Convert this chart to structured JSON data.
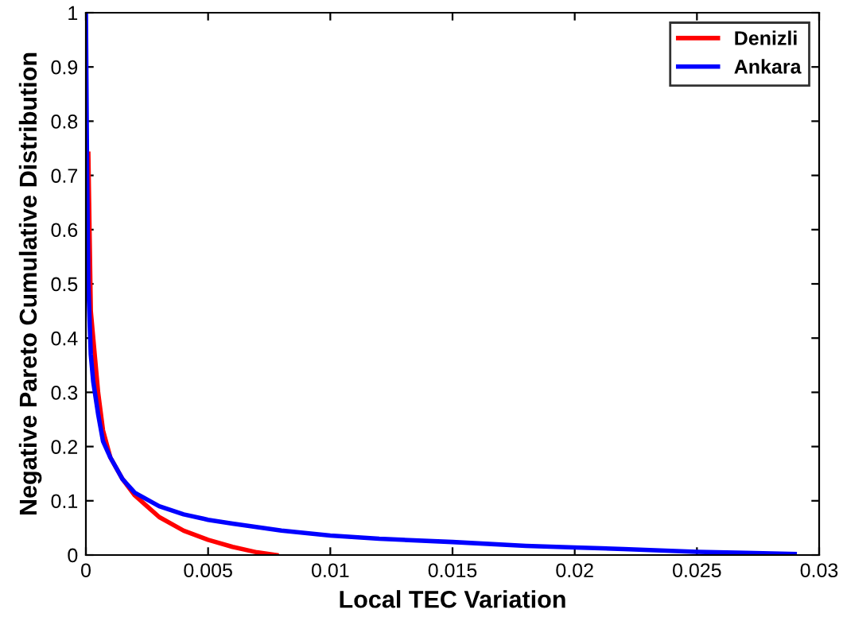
{
  "chart_data": {
    "type": "line",
    "xlabel": "Local TEC Variation",
    "ylabel": "Negative Pareto Cumulative Distribution",
    "xlim": [
      0,
      0.03
    ],
    "ylim": [
      0,
      1
    ],
    "xticks": [
      0,
      0.005,
      0.01,
      0.015,
      0.02,
      0.025,
      0.03
    ],
    "yticks": [
      0,
      0.1,
      0.2,
      0.3,
      0.4,
      0.5,
      0.6,
      0.7,
      0.8,
      0.9,
      1
    ],
    "legend": "top right",
    "grid": false,
    "marker": "none",
    "line_style": "solid",
    "series": [
      {
        "name": "Denizli",
        "color": "#ff0000",
        "x": [
          0.0001,
          0.0002,
          0.0003,
          0.0005,
          0.0007,
          0.001,
          0.0015,
          0.002,
          0.0025,
          0.003,
          0.004,
          0.005,
          0.006,
          0.007,
          0.0078
        ],
        "values": [
          0.74,
          0.45,
          0.4,
          0.3,
          0.23,
          0.18,
          0.14,
          0.11,
          0.09,
          0.07,
          0.045,
          0.028,
          0.015,
          0.005,
          0
        ]
      },
      {
        "name": "Ankara",
        "color": "#0000ff",
        "x": [
          0,
          5e-05,
          0.0001,
          0.0002,
          0.0003,
          0.0005,
          0.0007,
          0.001,
          0.0015,
          0.002,
          0.003,
          0.004,
          0.005,
          0.006,
          0.008,
          0.01,
          0.012,
          0.015,
          0.018,
          0.02,
          0.022,
          0.025,
          0.027,
          0.029
        ],
        "values": [
          1,
          0.7,
          0.5,
          0.37,
          0.32,
          0.26,
          0.21,
          0.18,
          0.14,
          0.115,
          0.09,
          0.075,
          0.065,
          0.058,
          0.045,
          0.036,
          0.03,
          0.024,
          0.017,
          0.014,
          0.011,
          0.006,
          0.004,
          0.002
        ]
      }
    ]
  }
}
